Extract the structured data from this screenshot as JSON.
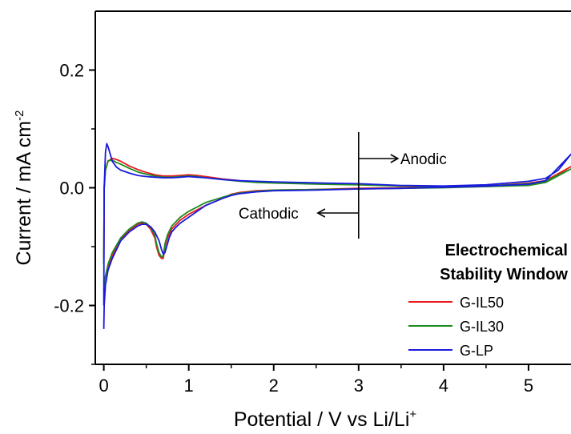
{
  "chart_data": {
    "type": "line",
    "title": "",
    "xlabel": "Potential / V vs Li/Li",
    "xlabel_sup": "+",
    "ylabel": "Current / mA cm",
    "ylabel_sup": "-2",
    "xlim": [
      -0.1,
      5.5
    ],
    "ylim": [
      -0.3,
      0.3
    ],
    "xticks": [
      0,
      1,
      2,
      3,
      4,
      5
    ],
    "yticks": [
      -0.2,
      0.0,
      0.2
    ],
    "ytick_labels": [
      "-0.2",
      "0.0",
      "0.2"
    ],
    "grid": false,
    "legend": {
      "title_line1": "Electrochemical",
      "title_line2": "Stability Window",
      "placement": "bottom-right"
    },
    "annotations": {
      "anodic": "Anodic",
      "cathodic": "Cathodic",
      "marker_x": 3.0
    },
    "series": [
      {
        "name": "G-IL50",
        "color": "#e8191c",
        "x": [
          0.0,
          0.005,
          0.02,
          0.05,
          0.1,
          0.15,
          0.2,
          0.3,
          0.4,
          0.5,
          0.6,
          0.7,
          0.8,
          0.9,
          1.0,
          1.1,
          1.2,
          1.4,
          1.6,
          1.8,
          2.0,
          2.3,
          2.6,
          3.0,
          3.5,
          4.0,
          4.5,
          5.0,
          5.2,
          5.5,
          5.2,
          5.0,
          4.5,
          4.0,
          3.5,
          3.0,
          2.5,
          2.0,
          1.8,
          1.6,
          1.5,
          1.4,
          1.2,
          1.0,
          0.9,
          0.8,
          0.75,
          0.72,
          0.7,
          0.68,
          0.65,
          0.62,
          0.6,
          0.55,
          0.5,
          0.45,
          0.4,
          0.3,
          0.2,
          0.1,
          0.05,
          0.02,
          0.005,
          0.0
        ],
        "y": [
          -0.12,
          0.0,
          0.03,
          0.045,
          0.05,
          0.048,
          0.045,
          0.037,
          0.031,
          0.026,
          0.022,
          0.02,
          0.02,
          0.021,
          0.022,
          0.021,
          0.019,
          0.015,
          0.012,
          0.01,
          0.009,
          0.008,
          0.007,
          0.006,
          0.003,
          0.002,
          0.003,
          0.008,
          0.012,
          0.036,
          0.01,
          0.005,
          0.002,
          0.001,
          0.0,
          -0.001,
          -0.003,
          -0.004,
          -0.005,
          -0.008,
          -0.011,
          -0.018,
          -0.03,
          -0.045,
          -0.055,
          -0.07,
          -0.085,
          -0.1,
          -0.12,
          -0.12,
          -0.115,
          -0.1,
          -0.085,
          -0.07,
          -0.062,
          -0.06,
          -0.062,
          -0.072,
          -0.088,
          -0.115,
          -0.135,
          -0.15,
          -0.16,
          -0.165
        ]
      },
      {
        "name": "G-IL30",
        "color": "#1f8a1f",
        "x": [
          0.0,
          0.005,
          0.02,
          0.05,
          0.1,
          0.15,
          0.2,
          0.3,
          0.4,
          0.5,
          0.6,
          0.7,
          0.8,
          0.9,
          1.0,
          1.1,
          1.2,
          1.4,
          1.6,
          1.8,
          2.0,
          2.3,
          2.6,
          3.0,
          3.5,
          4.0,
          4.5,
          5.0,
          5.2,
          5.5,
          5.2,
          5.0,
          4.5,
          4.0,
          3.5,
          3.0,
          2.5,
          2.0,
          1.8,
          1.6,
          1.5,
          1.4,
          1.2,
          1.0,
          0.9,
          0.8,
          0.75,
          0.72,
          0.7,
          0.68,
          0.65,
          0.62,
          0.6,
          0.55,
          0.5,
          0.45,
          0.4,
          0.3,
          0.2,
          0.1,
          0.05,
          0.02,
          0.005,
          0.0
        ],
        "y": [
          -0.13,
          0.0,
          0.03,
          0.046,
          0.047,
          0.043,
          0.04,
          0.033,
          0.027,
          0.023,
          0.02,
          0.018,
          0.018,
          0.019,
          0.02,
          0.019,
          0.017,
          0.014,
          0.011,
          0.009,
          0.008,
          0.007,
          0.006,
          0.005,
          0.003,
          0.002,
          0.003,
          0.007,
          0.011,
          0.032,
          0.009,
          0.004,
          0.002,
          0.0,
          -0.001,
          -0.002,
          -0.003,
          -0.004,
          -0.006,
          -0.009,
          -0.012,
          -0.016,
          -0.025,
          -0.04,
          -0.05,
          -0.065,
          -0.08,
          -0.095,
          -0.115,
          -0.118,
          -0.11,
          -0.095,
          -0.08,
          -0.067,
          -0.06,
          -0.058,
          -0.06,
          -0.07,
          -0.085,
          -0.11,
          -0.13,
          -0.15,
          -0.165,
          -0.175
        ]
      },
      {
        "name": "G-LP",
        "color": "#1a1adf",
        "x": [
          0.0,
          0.005,
          0.02,
          0.035,
          0.05,
          0.08,
          0.1,
          0.15,
          0.2,
          0.3,
          0.4,
          0.5,
          0.6,
          0.7,
          0.8,
          0.9,
          1.0,
          1.1,
          1.2,
          1.4,
          1.6,
          1.8,
          2.0,
          2.3,
          2.6,
          3.0,
          3.5,
          4.0,
          4.5,
          5.0,
          5.2,
          5.35,
          5.5,
          5.2,
          5.0,
          4.5,
          4.0,
          3.5,
          3.0,
          2.5,
          2.0,
          1.8,
          1.6,
          1.5,
          1.4,
          1.2,
          1.0,
          0.9,
          0.85,
          0.8,
          0.77,
          0.74,
          0.72,
          0.7,
          0.68,
          0.65,
          0.6,
          0.55,
          0.5,
          0.45,
          0.4,
          0.3,
          0.2,
          0.1,
          0.05,
          0.02,
          0.005,
          0.0
        ],
        "y": [
          -0.2,
          0.0,
          0.06,
          0.075,
          0.07,
          0.055,
          0.045,
          0.035,
          0.03,
          0.025,
          0.021,
          0.019,
          0.018,
          0.017,
          0.017,
          0.018,
          0.019,
          0.018,
          0.017,
          0.014,
          0.012,
          0.011,
          0.01,
          0.009,
          0.008,
          0.007,
          0.004,
          0.003,
          0.005,
          0.011,
          0.016,
          0.03,
          0.057,
          0.012,
          0.006,
          0.003,
          0.001,
          -0.001,
          -0.002,
          -0.004,
          -0.005,
          -0.007,
          -0.01,
          -0.013,
          -0.018,
          -0.03,
          -0.05,
          -0.06,
          -0.067,
          -0.075,
          -0.085,
          -0.1,
          -0.11,
          -0.113,
          -0.105,
          -0.09,
          -0.075,
          -0.066,
          -0.062,
          -0.062,
          -0.065,
          -0.075,
          -0.09,
          -0.12,
          -0.14,
          -0.165,
          -0.2,
          -0.24
        ]
      }
    ]
  }
}
